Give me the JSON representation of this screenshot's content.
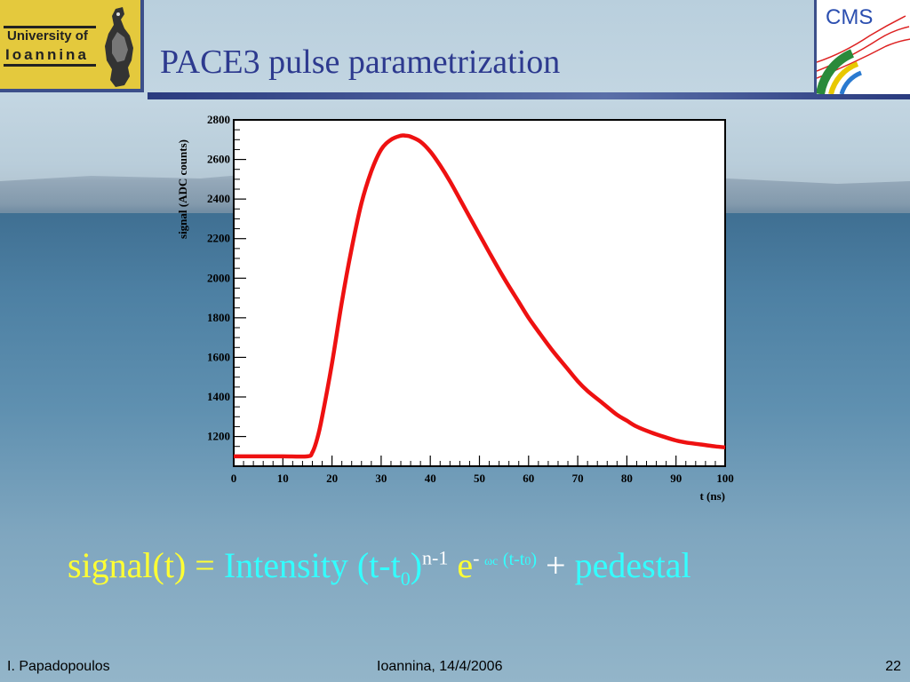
{
  "slide": {
    "title": "PACE3 pulse parametrization",
    "logo_left": {
      "line1": "University of",
      "line2": "Ioannina"
    },
    "logo_right": {
      "text": "CMS"
    },
    "footer": {
      "author": "I. Papadopoulos",
      "place_date": "Ioannina, 14/4/2006",
      "page": "22"
    },
    "formula": {
      "lhs": "signal(t) =",
      "intensity": "Intensity (t-t",
      "sub0": "0",
      "close": ")",
      "exp_n": "n-1",
      "e": "e",
      "exp_minus": "-",
      "omega": "ωc",
      "exp_t": "(t-t",
      "exp_sub0": "0",
      "exp_close": ")",
      "plus": "+",
      "pedestal": "pedestal"
    }
  },
  "chart_data": {
    "type": "line",
    "title": "",
    "xlabel": "t (ns)",
    "ylabel": "signal (ADC counts)",
    "xlim": [
      0,
      100
    ],
    "ylim": [
      1050,
      2800
    ],
    "x_ticks": [
      0,
      10,
      20,
      30,
      40,
      50,
      60,
      70,
      80,
      90,
      100
    ],
    "y_ticks": [
      1200,
      1400,
      1600,
      1800,
      2000,
      2200,
      2400,
      2600,
      2800
    ],
    "line_color": "#ee1111",
    "grid": false,
    "series": [
      {
        "x": [
          0,
          5,
          10,
          15,
          16,
          17,
          18,
          20,
          22,
          24,
          26,
          28,
          30,
          32,
          34,
          35,
          36,
          38,
          40,
          42,
          44,
          46,
          48,
          50,
          52,
          55,
          58,
          60,
          62,
          65,
          68,
          70,
          72,
          75,
          78,
          80,
          82,
          85,
          88,
          90,
          92,
          95,
          98,
          100
        ],
        "y": [
          1100,
          1100,
          1100,
          1100,
          1120,
          1190,
          1300,
          1570,
          1880,
          2150,
          2380,
          2540,
          2650,
          2700,
          2720,
          2720,
          2715,
          2690,
          2640,
          2570,
          2490,
          2400,
          2310,
          2220,
          2130,
          2000,
          1880,
          1800,
          1730,
          1630,
          1540,
          1480,
          1430,
          1370,
          1310,
          1280,
          1250,
          1220,
          1195,
          1180,
          1170,
          1160,
          1150,
          1145
        ]
      }
    ]
  }
}
